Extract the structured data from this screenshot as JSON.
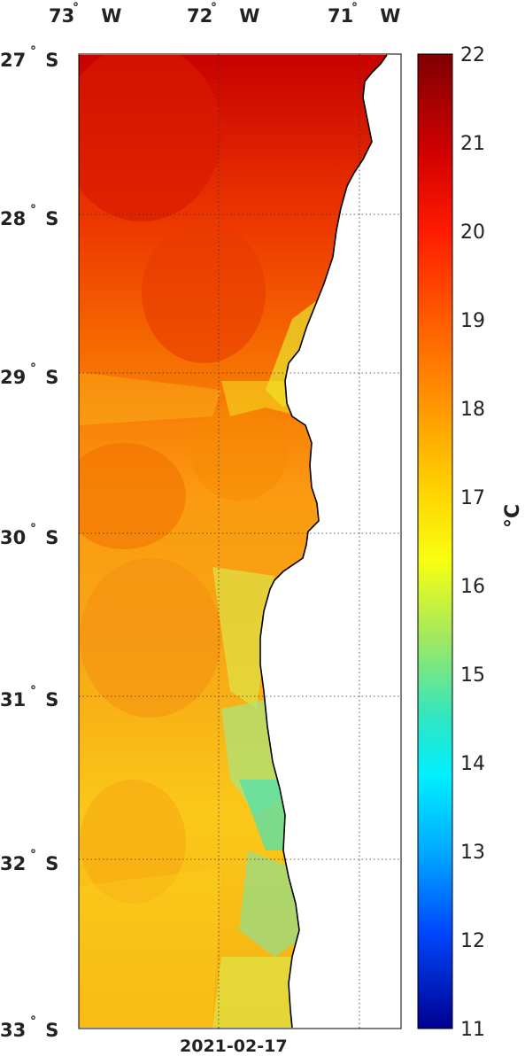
{
  "map": {
    "date": "2021-02-17",
    "unit": "°C",
    "lon_labels": [
      {
        "value": "73",
        "suffix": "W"
      },
      {
        "value": "72",
        "suffix": "W"
      },
      {
        "value": "71",
        "suffix": "W"
      }
    ],
    "lat_labels": [
      {
        "value": "27",
        "suffix": "S"
      },
      {
        "value": "28",
        "suffix": "S"
      },
      {
        "value": "29",
        "suffix": "S"
      },
      {
        "value": "30",
        "suffix": "S"
      },
      {
        "value": "31",
        "suffix": "S"
      },
      {
        "value": "32",
        "suffix": "S"
      },
      {
        "value": "33",
        "suffix": "S"
      }
    ],
    "colorbar": {
      "min": 11,
      "max": 22,
      "ticks": [
        "22",
        "21",
        "20",
        "19",
        "18",
        "17",
        "16",
        "15",
        "14",
        "13",
        "12",
        "11"
      ]
    },
    "colors": {
      "land": "#ffffff",
      "coast": "#000000",
      "grid": "#333333"
    }
  }
}
